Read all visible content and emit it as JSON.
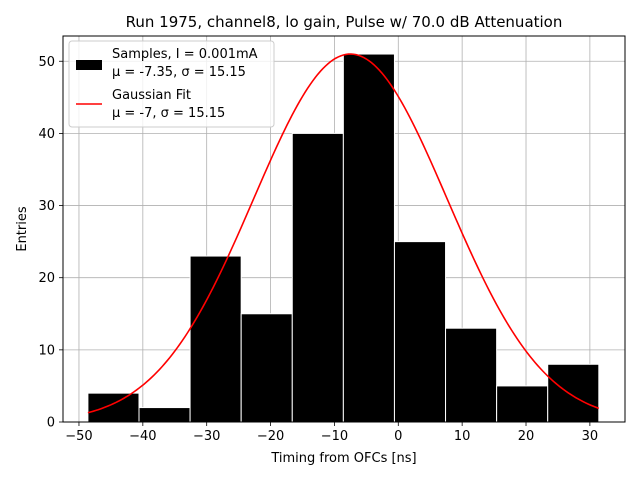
{
  "chart_data": {
    "type": "bar",
    "title": "Run 1975, channel8, lo gain, Pulse w/ 70.0 dB Attenuation",
    "xlabel": "Timing from OFCs [ns]",
    "ylabel": "Entries",
    "xlim": [
      -52.5,
      35.5
    ],
    "ylim": [
      0,
      53.5
    ],
    "xticks": [
      -50,
      -40,
      -30,
      -20,
      -10,
      0,
      10,
      20,
      30
    ],
    "xtick_labels": [
      "−50",
      "−40",
      "−30",
      "−20",
      "−10",
      "0",
      "10",
      "20",
      "30"
    ],
    "yticks": [
      0,
      10,
      20,
      30,
      40,
      50
    ],
    "ytick_labels": [
      "0",
      "10",
      "20",
      "30",
      "40",
      "50"
    ],
    "grid": true,
    "bin_edges": [
      -48.6,
      -40.6,
      -32.6,
      -24.6,
      -16.6,
      -8.6,
      -0.6,
      7.4,
      15.4,
      23.4,
      31.4
    ],
    "values": [
      4,
      2,
      23,
      15,
      40,
      51,
      25,
      13,
      5,
      8
    ],
    "bar_color": "#000000",
    "bar_edge_color": "#ffffff",
    "fit": {
      "mu": -7.5,
      "sigma": 15.15,
      "amplitude": 51,
      "x_range": [
        -48.6,
        31.4
      ],
      "color": "#ff0000"
    },
    "legend": {
      "position": "upper-left",
      "entries": [
        {
          "kind": "patch",
          "color": "#000000",
          "line1": "Samples, I = 0.001mA",
          "line2": "μ = -7.35, σ = 15.15"
        },
        {
          "kind": "line",
          "color": "#ff0000",
          "line1": "Gaussian Fit",
          "line2": "μ = -7, σ = 15.15"
        }
      ]
    }
  }
}
